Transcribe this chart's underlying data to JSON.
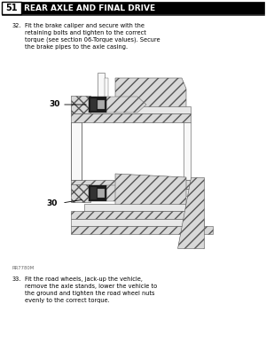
{
  "page_bg": "#ffffff",
  "header_box_label": "51",
  "header_title": "REAR AXLE AND FINAL DRIVE",
  "para32_label": "32.",
  "para32_text": "Fit the brake caliper and secure with the\nretaining bolts and tighten to the correct\ntorque (see section 06-Torque values). Secure\nthe brake pipes to the axle casing.",
  "para33_label": "33.",
  "para33_text": "Fit the road wheels, jack-up the vehicle,\nremove the axle stands, lower the vehicle to\nthe ground and tighten the road wheel nuts\nevenly to the correct torque.",
  "fig_caption": "RR7780M",
  "text_fontsize": 4.8,
  "label_fontsize": 4.8,
  "header_fontsize": 7.0,
  "number_fontsize": 6.5
}
